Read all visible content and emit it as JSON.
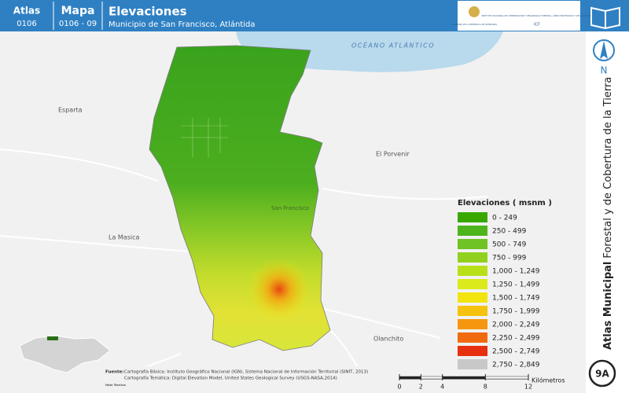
{
  "header": {
    "atlas_label": "Atlas",
    "atlas_code": "0106",
    "map_label": "Mapa",
    "map_code": "0106 - 09",
    "title": "Elevaciones",
    "subtitle": "Municipio de San Francisco, Atlántida",
    "logo_gov": "GOBIERNO DE LA REPÚBLICA DE HONDURAS",
    "logo_icf": "INSTITUTO NACIONAL DE CONSERVACIÓN Y DESARROLLO FORESTAL, ÁREAS PROTEGIDAS Y VIDA SILVESTRE",
    "logo_icf_short": "ICF"
  },
  "map": {
    "labels": [
      "OCÉANO ATLÁNTICO",
      "Esparta",
      "El Porvenir",
      "San Francisco",
      "La Masica",
      "Olanchito"
    ]
  },
  "legend": {
    "title": "Elevaciones ( msnm )",
    "items": [
      {
        "label": "0 - 249",
        "color": "#38a800"
      },
      {
        "label": "250 - 499",
        "color": "#4db51c"
      },
      {
        "label": "500 - 749",
        "color": "#6fc324"
      },
      {
        "label": "750 - 999",
        "color": "#91d11e"
      },
      {
        "label": "1,000 - 1,249",
        "color": "#b8e01a"
      },
      {
        "label": "1,250 - 1,499",
        "color": "#dbea1a"
      },
      {
        "label": "1,500 - 1,749",
        "color": "#f2e40f"
      },
      {
        "label": "1,750 - 1,999",
        "color": "#f5c30f"
      },
      {
        "label": "2,000 - 2,249",
        "color": "#f5960f"
      },
      {
        "label": "2,250 - 2,499",
        "color": "#f06a0f"
      },
      {
        "label": "2,500 - 2,749",
        "color": "#e6300f"
      },
      {
        "label": "2,750 - 2,849",
        "color": "#c8c8c8"
      }
    ]
  },
  "side": {
    "north": "N",
    "atlas_bold": "Atlas Municipal",
    "atlas_rest": "Forestal y de Cobertura de la Tierra",
    "page": "9A"
  },
  "source": {
    "label": "Fuente:",
    "line1": "Cartografía Básica: Instituto Geográfico Nacional (IGN), Sistema Nacional de Información Territorial (SINIT, 2013)",
    "line2": "Cartografía Temática: Digital Elevation Model, United States Geological Survey (USGS-NASA,2014)",
    "note": "Nota Técnica:"
  },
  "scale": {
    "ticks": [
      0,
      2,
      4,
      8,
      12
    ],
    "unit": "Kilómetros"
  }
}
